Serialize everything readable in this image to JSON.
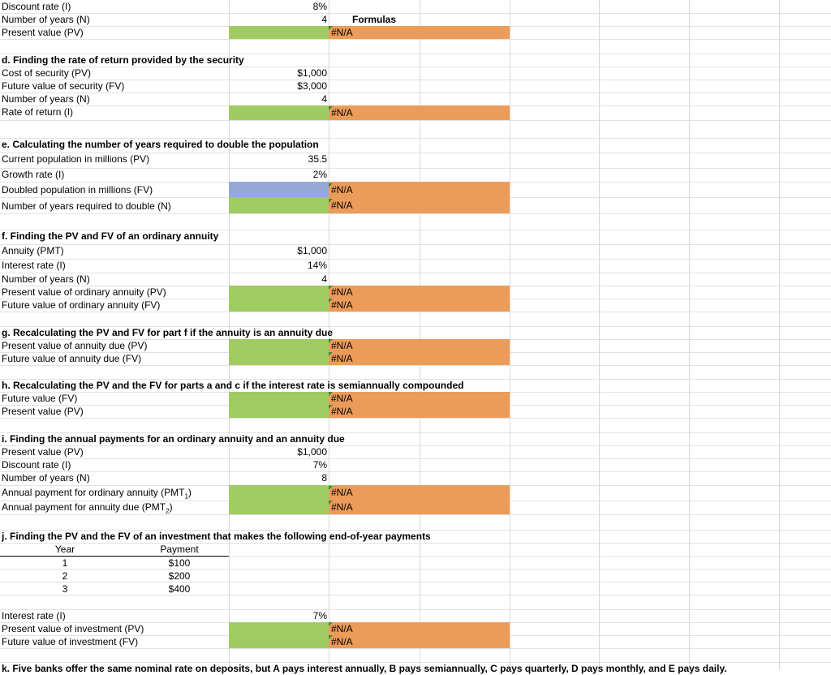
{
  "top": {
    "discount_rate_label": "Discount rate (I)",
    "discount_rate_value": "8%",
    "years_label": "Number of years (N)",
    "years_value": "4",
    "pv_label": "Present value (PV)",
    "formulas_header": "Formulas"
  },
  "na": "#N/A",
  "d": {
    "title": "d. Finding the rate of return provided by the security",
    "cost_label": "Cost of security (PV)",
    "cost_value": "$1,000",
    "fv_label": "Future value of security (FV)",
    "fv_value": "$3,000",
    "years_label": "Number of years (N)",
    "years_value": "4",
    "rate_label": "Rate of return (I)"
  },
  "e": {
    "title": "e. Calculating the number of years required to double the population",
    "pop_label": "Current population in millions (PV)",
    "pop_value": "35.5",
    "growth_label": "Growth rate (I)",
    "growth_value": "2%",
    "doubled_label": "Doubled population in millions (FV)",
    "years_label": "Number of years required to double (N)"
  },
  "f": {
    "title": "f. Finding the PV and FV of an ordinary annuity",
    "pmt_label": "Annuity (PMT)",
    "pmt_value": "$1,000",
    "rate_label": "Interest rate (I)",
    "rate_value": "14%",
    "years_label": "Number of years (N)",
    "years_value": "4",
    "pv_label": "Present value of ordinary annuity (PV)",
    "fv_label": "Future value of ordinary annuity (FV)"
  },
  "g": {
    "title": "g. Recalculating the PV and FV for part f if the annuity is an annuity due",
    "pv_label": "Present value of annuity due (PV)",
    "fv_label": "Future value of annuity due (FV)"
  },
  "h": {
    "title": "h. Recalculating the PV and the FV for parts a and c if the interest rate is semiannually compounded",
    "fv_label": "Future value (FV)",
    "pv_label": "Present value (PV)"
  },
  "i": {
    "title": "i. Finding the annual payments for an ordinary annuity and an annuity due",
    "pv_label": "Present value (PV)",
    "pv_value": "$1,000",
    "rate_label": "Discount rate (I)",
    "rate_value": "7%",
    "years_label": "Number of years (N)",
    "years_value": "8",
    "pmt1_label": "Annual payment for ordinary annuity (PMT",
    "pmt1_sub": "1",
    "pmt1_close": ")",
    "pmt2_label": "Annual payment for annuity due (PMT",
    "pmt2_sub": "2",
    "pmt2_close": ")"
  },
  "j": {
    "title": "j. Finding the PV and the FV of an investment that makes the following end-of-year payments",
    "col_year": "Year",
    "col_payment": "Payment",
    "rows": [
      {
        "year": "1",
        "payment": "$100"
      },
      {
        "year": "2",
        "payment": "$200"
      },
      {
        "year": "3",
        "payment": "$400"
      }
    ],
    "rate_label": "Interest rate (I)",
    "rate_value": "7%",
    "pv_label": "Present value of investment (PV)",
    "fv_label": "Future value of investment (FV)"
  },
  "k": {
    "title_partial": "k. Five banks offer the same nominal rate on deposits, but A pays interest annually, B pays semiannually, C pays quarterly, D pays monthly, and E pays daily."
  }
}
